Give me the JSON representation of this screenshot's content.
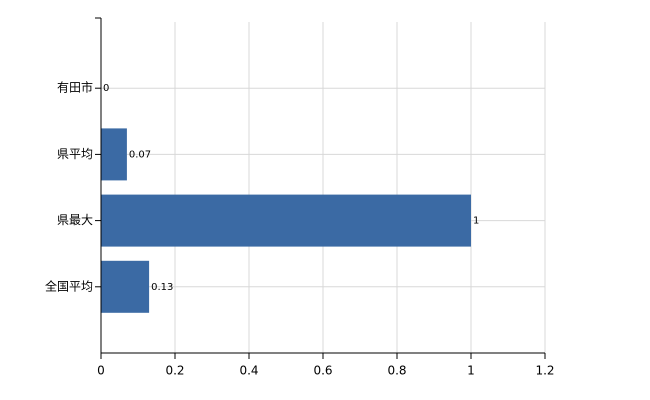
{
  "chart_data": {
    "type": "bar",
    "orientation": "horizontal",
    "categories": [
      "有田市",
      "県平均",
      "県最大",
      "全国平均"
    ],
    "values": [
      0,
      0.07,
      1,
      0.13
    ],
    "color": "#3b6aa4",
    "xlim": [
      0,
      1.2
    ],
    "xticks": [
      0,
      0.2,
      0.4,
      0.6,
      0.8,
      1,
      1.2
    ],
    "grid": true
  }
}
